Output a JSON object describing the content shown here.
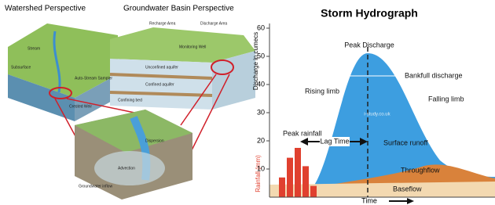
{
  "diagram": {
    "watershed_title": "Watershed Perspective",
    "groundwater_title": "Groundwater Basin Perspective",
    "labels": [
      "Stream",
      "Subsurface",
      "Crested Weir",
      "Auto-Stream Sampler",
      "Recharge Area",
      "Discharge Area",
      "Monitoring Well",
      "Unconfined aquifer",
      "Confined aquifer",
      "Confining bed",
      "Dispersion",
      "Advection",
      "Groundwater inflow"
    ]
  },
  "chart_data": {
    "type": "hydrograph",
    "title": "Storm Hydrograph",
    "y_label": "Discharge in cumecs",
    "rainfall_label": "Rainfall (mm)",
    "x_label": "Time",
    "ylim": [
      0,
      60
    ],
    "yticks": [
      10,
      20,
      30,
      40,
      50,
      60
    ],
    "rainfall_values": [
      7,
      14,
      17.5,
      11,
      4
    ],
    "rainfall_color": "#e0402f",
    "annotations": [
      "Peak Discharge",
      "Bankfull discharge",
      "Rising limb",
      "Falling limb",
      "Peak rainfall",
      "Lag Time",
      "Surface runoff",
      "Throughflow",
      "Baseflow",
      "i-study.co.uk"
    ]
  }
}
